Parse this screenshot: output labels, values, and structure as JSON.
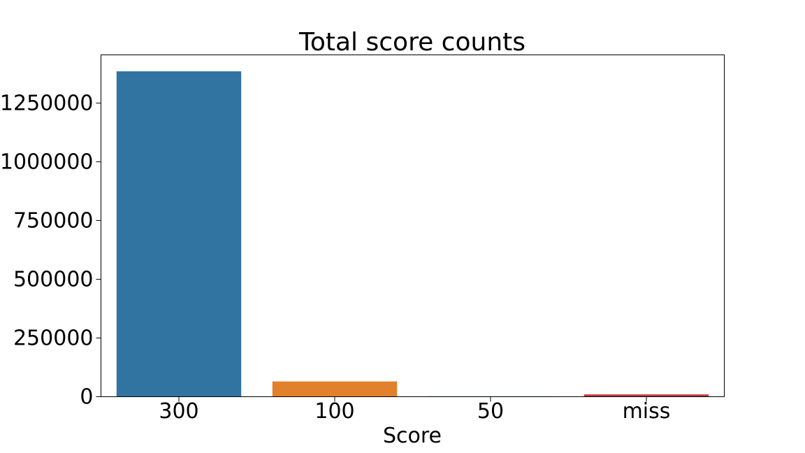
{
  "chart_data": {
    "type": "bar",
    "title": "Total score counts",
    "xlabel": "Score",
    "ylabel": "",
    "categories": [
      "300",
      "100",
      "50",
      "miss"
    ],
    "values": [
      1385000,
      65000,
      2000,
      10000
    ],
    "colors": [
      "#3274a1",
      "#e1812c",
      "#3a923a",
      "#c03d3e"
    ],
    "ylim": [
      0,
      1455000
    ],
    "yticks": [
      0,
      250000,
      500000,
      750000,
      1000000,
      1250000
    ],
    "ytick_labels": [
      "0",
      "250000",
      "500000",
      "750000",
      "1000000",
      "1250000"
    ],
    "grid": false,
    "legend": "none"
  }
}
